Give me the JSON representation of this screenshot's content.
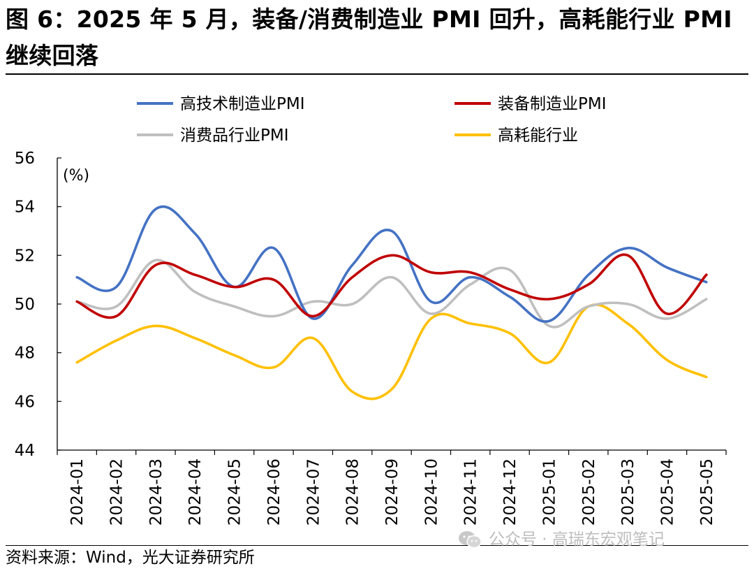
{
  "title": "图 6：2025 年 5 月，装备/消费制造业 PMI 回升，高耗能行业 PMI 继续回落",
  "source": "资料来源：Wind，光大证券研究所",
  "watermark": "公众号 · 高瑞东宏观笔记",
  "chart_data": {
    "type": "line",
    "unit_label": "(%)",
    "x": [
      "2024-01",
      "2024-02",
      "2024-03",
      "2024-04",
      "2024-05",
      "2024-06",
      "2024-07",
      "2024-08",
      "2024-09",
      "2024-10",
      "2024-11",
      "2024-12",
      "2025-01",
      "2025-02",
      "2025-03",
      "2025-04",
      "2025-05"
    ],
    "ylim": [
      44,
      56
    ],
    "yticks": [
      44,
      46,
      48,
      50,
      52,
      54,
      56
    ],
    "grid": false,
    "legend_position": "top",
    "series": [
      {
        "name": "高技术制造业PMI",
        "color": "#4472C4",
        "values": [
          51.1,
          50.7,
          53.9,
          52.9,
          50.7,
          52.3,
          49.4,
          51.6,
          53.0,
          50.1,
          51.1,
          50.3,
          49.3,
          51.2,
          52.3,
          51.5,
          50.9
        ]
      },
      {
        "name": "装备制造业PMI",
        "color": "#C00000",
        "values": [
          50.1,
          49.5,
          51.6,
          51.2,
          50.7,
          51.0,
          49.5,
          51.1,
          52.0,
          51.3,
          51.3,
          50.6,
          50.2,
          50.8,
          52.0,
          49.6,
          51.2
        ]
      },
      {
        "name": "消费品行业PMI",
        "color": "#BFBFBF",
        "values": [
          50.1,
          49.9,
          51.8,
          50.5,
          49.9,
          49.5,
          50.1,
          50.0,
          51.1,
          49.6,
          50.8,
          51.4,
          49.1,
          49.9,
          50.0,
          49.4,
          50.2
        ]
      },
      {
        "name": "高耗能行业",
        "color": "#FFC000",
        "values": [
          47.6,
          48.5,
          49.1,
          48.6,
          47.9,
          47.4,
          48.6,
          46.4,
          46.5,
          49.4,
          49.2,
          48.8,
          47.6,
          49.9,
          49.2,
          47.7,
          47.0
        ]
      }
    ]
  }
}
